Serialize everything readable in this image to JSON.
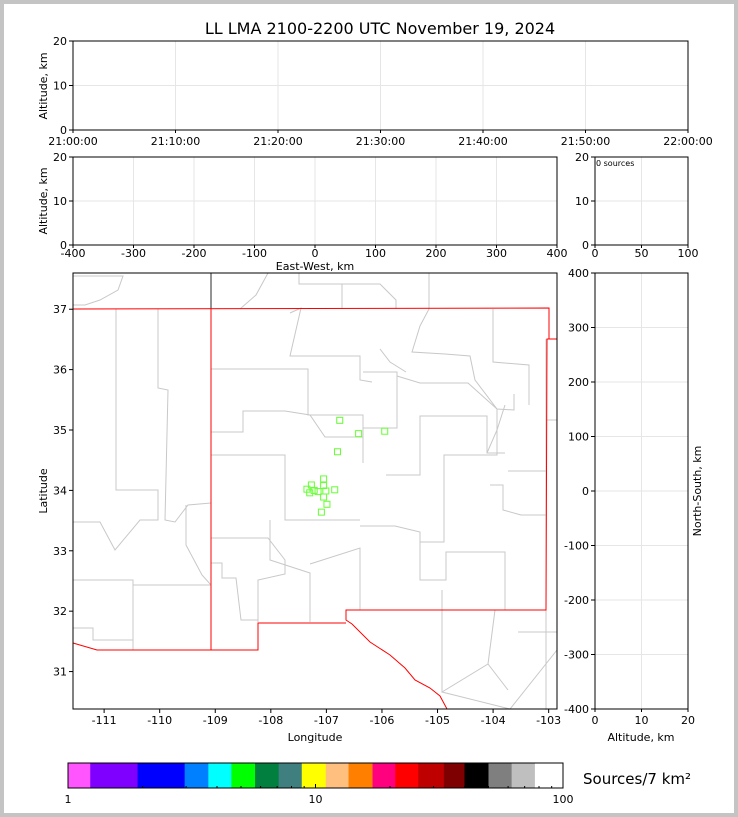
{
  "chart_data": [
    {
      "id": "time-height",
      "type": "scatter",
      "title": "LL LMA 2100-2200 UTC November 19, 2024",
      "ylabel": "Altitude, km",
      "xlim": [
        "21:00:00",
        "22:00:00"
      ],
      "xticks": [
        "21:00:00",
        "21:10:00",
        "21:20:00",
        "21:30:00",
        "21:40:00",
        "21:50:00",
        "22:00:00"
      ],
      "ylim": [
        0,
        20
      ],
      "yticks": [
        0,
        10,
        20
      ],
      "grid": true,
      "points": []
    },
    {
      "id": "ew-height",
      "type": "scatter",
      "xlabel": "East-West, km",
      "ylabel": "Altitude, km",
      "xlim": [
        -400,
        400
      ],
      "xticks": [
        -400,
        -300,
        -200,
        -100,
        0,
        100,
        200,
        300,
        400
      ],
      "ylim": [
        0,
        20
      ],
      "yticks": [
        0,
        10,
        20
      ],
      "grid": true,
      "points": []
    },
    {
      "id": "histogram",
      "type": "bar",
      "annotation": "0 sources",
      "xlim": [
        0,
        100
      ],
      "xticks": [
        0,
        50,
        100
      ],
      "ylim": [
        0,
        20
      ],
      "yticks": [
        0,
        10,
        20
      ],
      "grid": true,
      "values": []
    },
    {
      "id": "plan-view",
      "type": "scatter",
      "xlabel": "Longitude",
      "ylabel": "Latitude",
      "xlim": [
        -111.56,
        -102.85
      ],
      "ylim": [
        30.38,
        37.6
      ],
      "xticks": [
        -111,
        -110,
        -109,
        -108,
        -107,
        -106,
        -105,
        -104,
        -103
      ],
      "yticks": [
        31,
        32,
        33,
        34,
        35,
        36,
        37
      ],
      "grid": false,
      "marker_color": "#66ff33",
      "border_color": "#ff0000",
      "points": [
        {
          "lon": -106.76,
          "lat": 35.16
        },
        {
          "lon": -106.42,
          "lat": 34.94
        },
        {
          "lon": -105.95,
          "lat": 34.98
        },
        {
          "lon": -106.8,
          "lat": 34.64
        },
        {
          "lon": -107.05,
          "lat": 34.19
        },
        {
          "lon": -107.05,
          "lat": 34.08
        },
        {
          "lon": -107.27,
          "lat": 34.09
        },
        {
          "lon": -107.35,
          "lat": 34.02
        },
        {
          "lon": -107.3,
          "lat": 33.96
        },
        {
          "lon": -107.22,
          "lat": 34.0
        },
        {
          "lon": -107.15,
          "lat": 33.98
        },
        {
          "lon": -107.01,
          "lat": 33.99
        },
        {
          "lon": -106.85,
          "lat": 34.01
        },
        {
          "lon": -107.05,
          "lat": 33.89
        },
        {
          "lon": -106.99,
          "lat": 33.77
        },
        {
          "lon": -107.09,
          "lat": 33.64
        }
      ]
    },
    {
      "id": "ns-height",
      "type": "scatter",
      "xlabel": "Altitude, km",
      "ylabel": "North-South, km",
      "xlim": [
        0,
        20
      ],
      "xticks": [
        0,
        10,
        20
      ],
      "ylim": [
        -400,
        400
      ],
      "yticks": [
        -400,
        -300,
        -200,
        -100,
        0,
        100,
        200,
        300,
        400
      ],
      "grid": true,
      "points": []
    }
  ],
  "colorbar": {
    "label": "Sources/7 km²",
    "scale": "log",
    "range": [
      1,
      100
    ],
    "ticklabels": [
      "1",
      "10",
      "100"
    ],
    "boundaries": [
      1,
      1.23,
      1.91,
      2.96,
      3.69,
      4.57,
      5.7,
      7.1,
      8.8,
      11,
      13.6,
      17,
      21,
      26,
      33,
      40,
      50,
      62,
      77,
      100
    ],
    "colors": [
      "#ff55ff",
      "#7f00ff",
      "#0000ff",
      "#007fff",
      "#00ffff",
      "#00ff00",
      "#007f3f",
      "#3f7f7f",
      "#ffff00",
      "#ffbf7f",
      "#ff7f00",
      "#ff007f",
      "#ff0000",
      "#bf0000",
      "#7f0000",
      "#000000",
      "#7f7f7f",
      "#bfbfbf",
      "#ffffff"
    ]
  }
}
